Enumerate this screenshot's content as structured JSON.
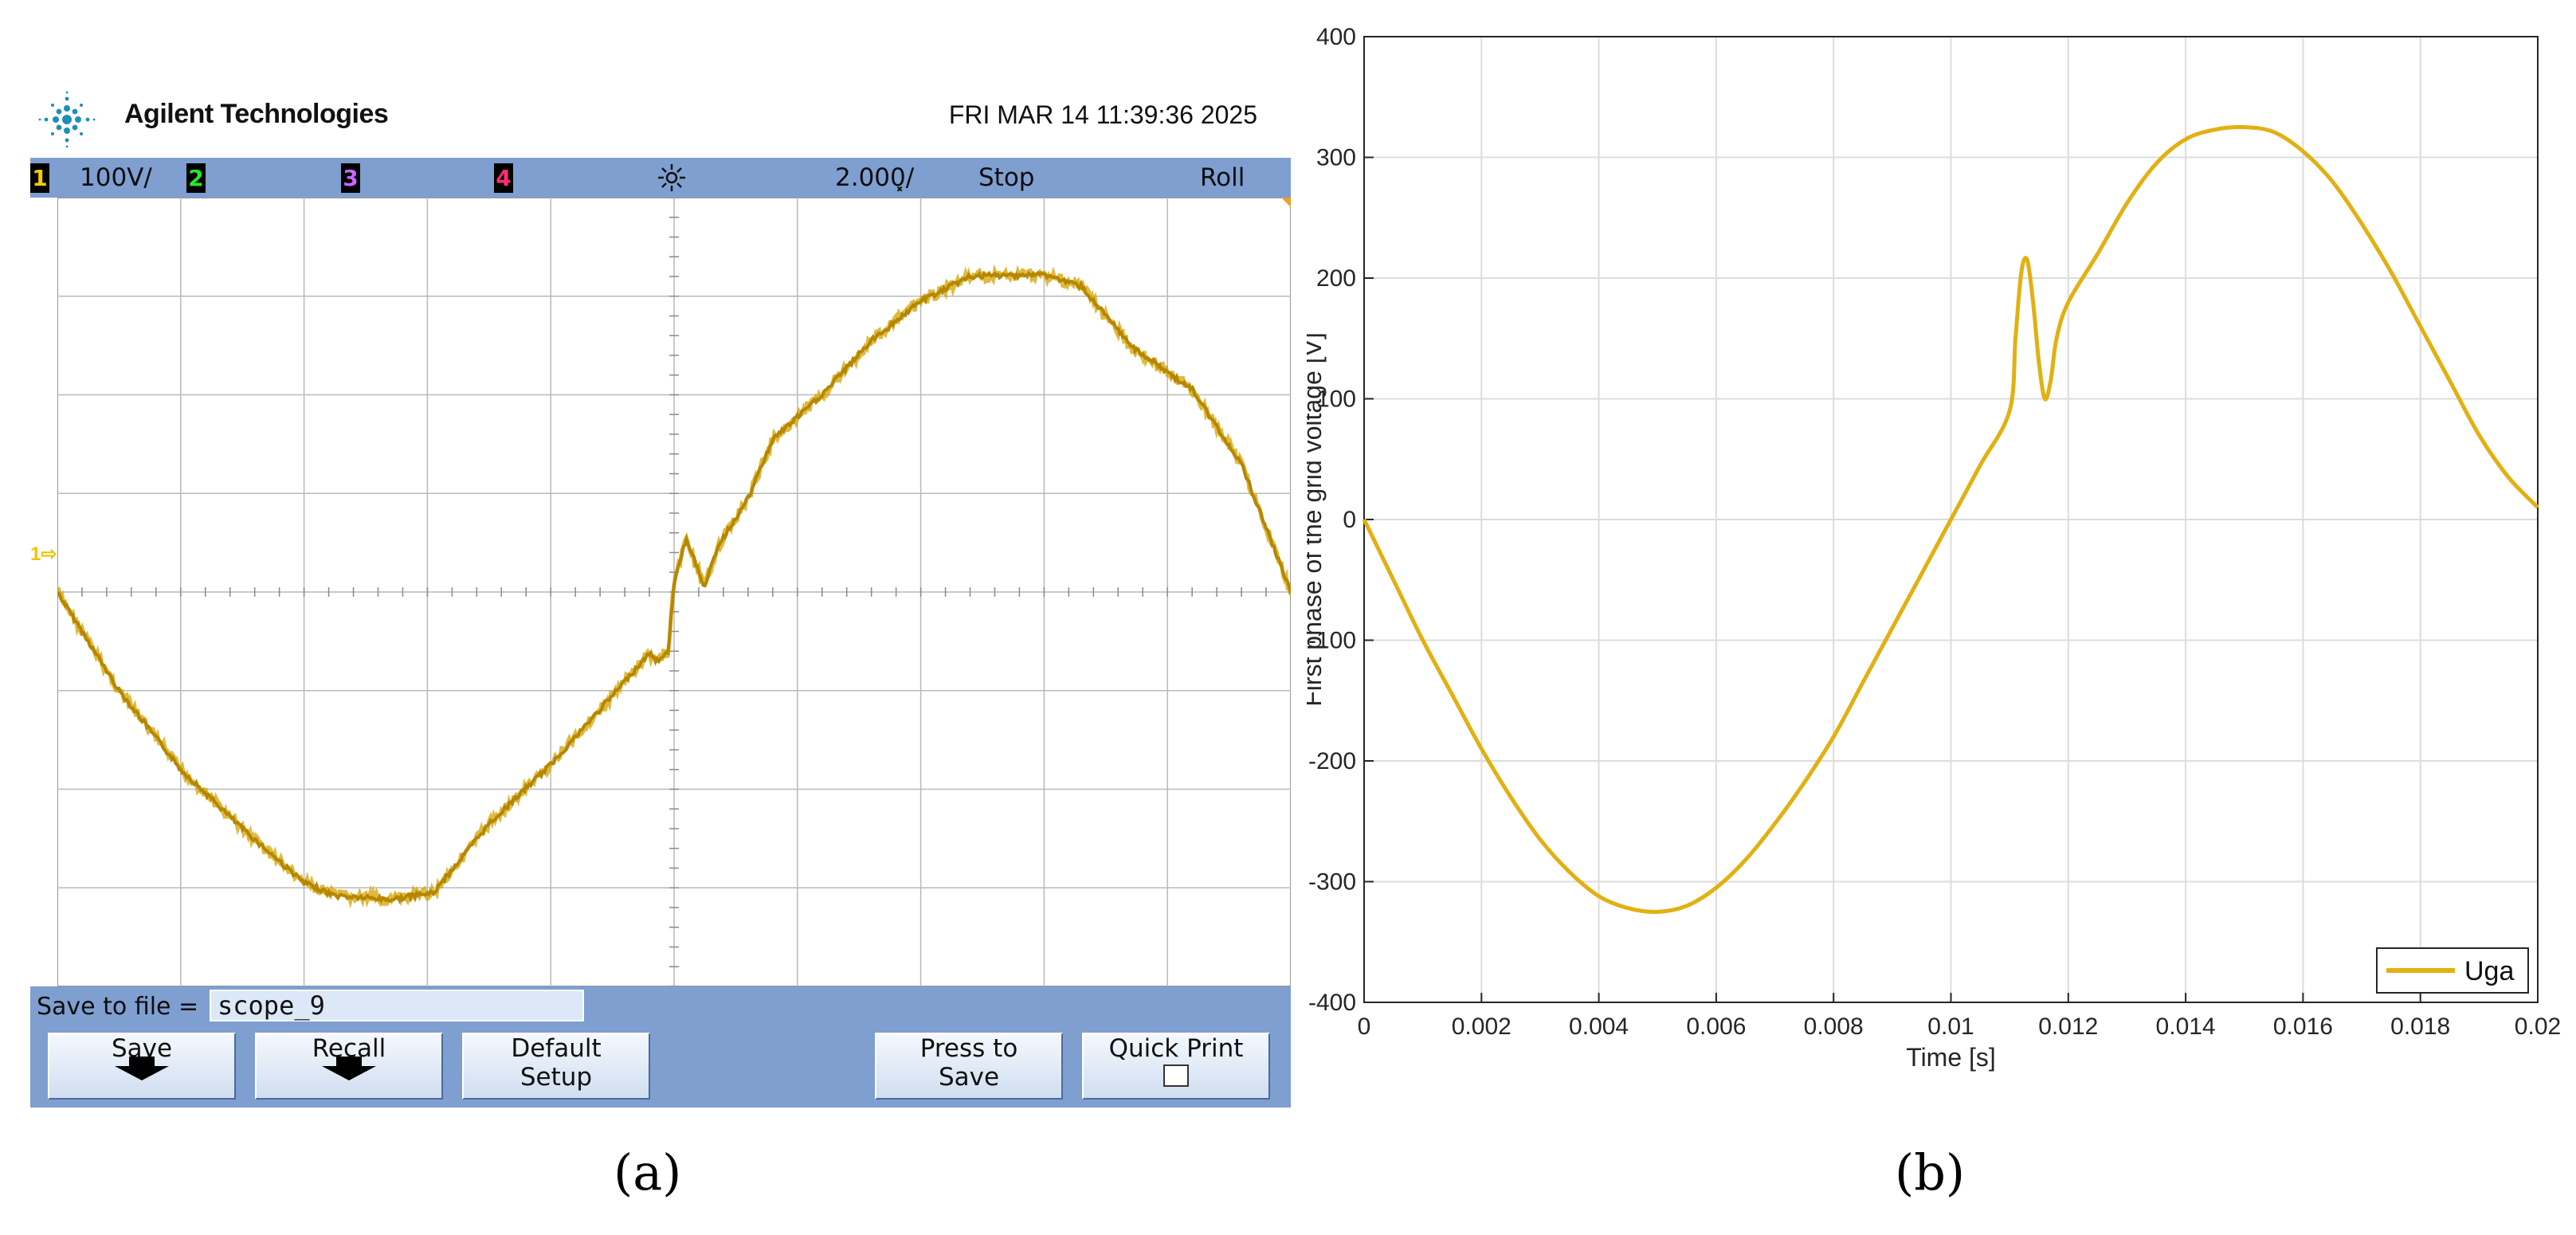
{
  "panels": {
    "a": "(a)",
    "b": "(b)"
  },
  "scope": {
    "brand": "Agilent Technologies",
    "datetime": "FRI MAR 14 11:39:36 2025",
    "channels": [
      "1",
      "2",
      "3",
      "4"
    ],
    "ch1_scale": "100V/",
    "timebase": "2.000͓/",
    "run_state": "Stop",
    "mode": "Roll",
    "ground_marker": "1⇨",
    "save_to_file_label": "Save to file =",
    "filename": "scope_9",
    "softkeys": {
      "save": "Save",
      "recall": "Recall",
      "default_line1": "Default",
      "default_line2": "Setup",
      "press_line1": "Press to",
      "press_line2": "Save",
      "quick_print": "Quick Print"
    },
    "colors": {
      "bar": "#7e9fd0",
      "trace": "#d4a300",
      "grid": "#b9b9b9"
    },
    "grid": {
      "divisions_x": 10,
      "divisions_y": 8
    },
    "trace_divisions": {
      "note_units": "vertical divisions from center (1 div = 100 V), horizontal divisions 0-10 (1 div = 2.000 ms)",
      "points": [
        [
          0,
          0
        ],
        [
          0.5,
          -1.0
        ],
        [
          1.0,
          -1.8
        ],
        [
          1.5,
          -2.4
        ],
        [
          2.0,
          -2.95
        ],
        [
          2.25,
          -3.08
        ],
        [
          2.7,
          -3.12
        ],
        [
          3.05,
          -3.05
        ],
        [
          3.5,
          -2.35
        ],
        [
          4.0,
          -1.75
        ],
        [
          4.5,
          -1.05
        ],
        [
          4.8,
          -0.62
        ],
        [
          4.85,
          -0.7
        ],
        [
          4.95,
          -0.62
        ],
        [
          5.0,
          0.1
        ],
        [
          5.1,
          0.55
        ],
        [
          5.2,
          0.2
        ],
        [
          5.25,
          0.05
        ],
        [
          5.35,
          0.45
        ],
        [
          5.6,
          0.95
        ],
        [
          5.8,
          1.55
        ],
        [
          6.2,
          2.0
        ],
        [
          6.6,
          2.55
        ],
        [
          7.0,
          2.95
        ],
        [
          7.4,
          3.2
        ],
        [
          8.0,
          3.22
        ],
        [
          8.3,
          3.1
        ],
        [
          8.7,
          2.5
        ],
        [
          9.2,
          2.05
        ],
        [
          9.6,
          1.3
        ],
        [
          10.0,
          0.0
        ]
      ]
    }
  },
  "chart_data": {
    "type": "line",
    "title": "",
    "xlabel": "Time [s]",
    "ylabel": "First phase of the grid voltage [V]",
    "xlim": [
      0,
      0.02
    ],
    "ylim": [
      -400,
      400
    ],
    "xticks": [
      0,
      0.002,
      0.004,
      0.006,
      0.008,
      0.01,
      0.012,
      0.014,
      0.016,
      0.018,
      0.02
    ],
    "xtick_labels": [
      "0",
      "0.002",
      "0.004",
      "0.006",
      "0.008",
      "0.01",
      "0.012",
      "0.014",
      "0.016",
      "0.018",
      "0.02"
    ],
    "yticks": [
      -400,
      -300,
      -200,
      -100,
      0,
      100,
      200,
      300,
      400
    ],
    "ytick_labels": [
      "-400",
      "-300",
      "-200",
      "-100",
      "0",
      "100",
      "200",
      "300",
      "400"
    ],
    "grid": true,
    "legend_position": "bottom-right",
    "series": [
      {
        "name": "Uga",
        "color": "#e2b012",
        "x": [
          0,
          0.0005,
          0.001,
          0.0015,
          0.002,
          0.0025,
          0.003,
          0.0035,
          0.004,
          0.0045,
          0.005,
          0.0055,
          0.006,
          0.0065,
          0.007,
          0.0075,
          0.008,
          0.0085,
          0.009,
          0.0095,
          0.01,
          0.0105,
          0.011,
          0.0111,
          0.0112,
          0.0113,
          0.0114,
          0.0115,
          0.0116,
          0.0117,
          0.0118,
          0.012,
          0.0125,
          0.013,
          0.0135,
          0.014,
          0.0145,
          0.015,
          0.0155,
          0.016,
          0.0165,
          0.017,
          0.0175,
          0.018,
          0.0185,
          0.019,
          0.0195,
          0.02
        ],
        "y": [
          0,
          -50,
          -100,
          -145,
          -190,
          -230,
          -265,
          -292,
          -312,
          -322,
          -325,
          -320,
          -305,
          -282,
          -252,
          -218,
          -180,
          -135,
          -90,
          -45,
          0,
          45,
          90,
          150,
          205,
          215,
          180,
          130,
          100,
          115,
          150,
          180,
          220,
          262,
          295,
          315,
          323,
          325,
          321,
          305,
          280,
          245,
          205,
          160,
          115,
          70,
          35,
          10
        ]
      }
    ]
  }
}
